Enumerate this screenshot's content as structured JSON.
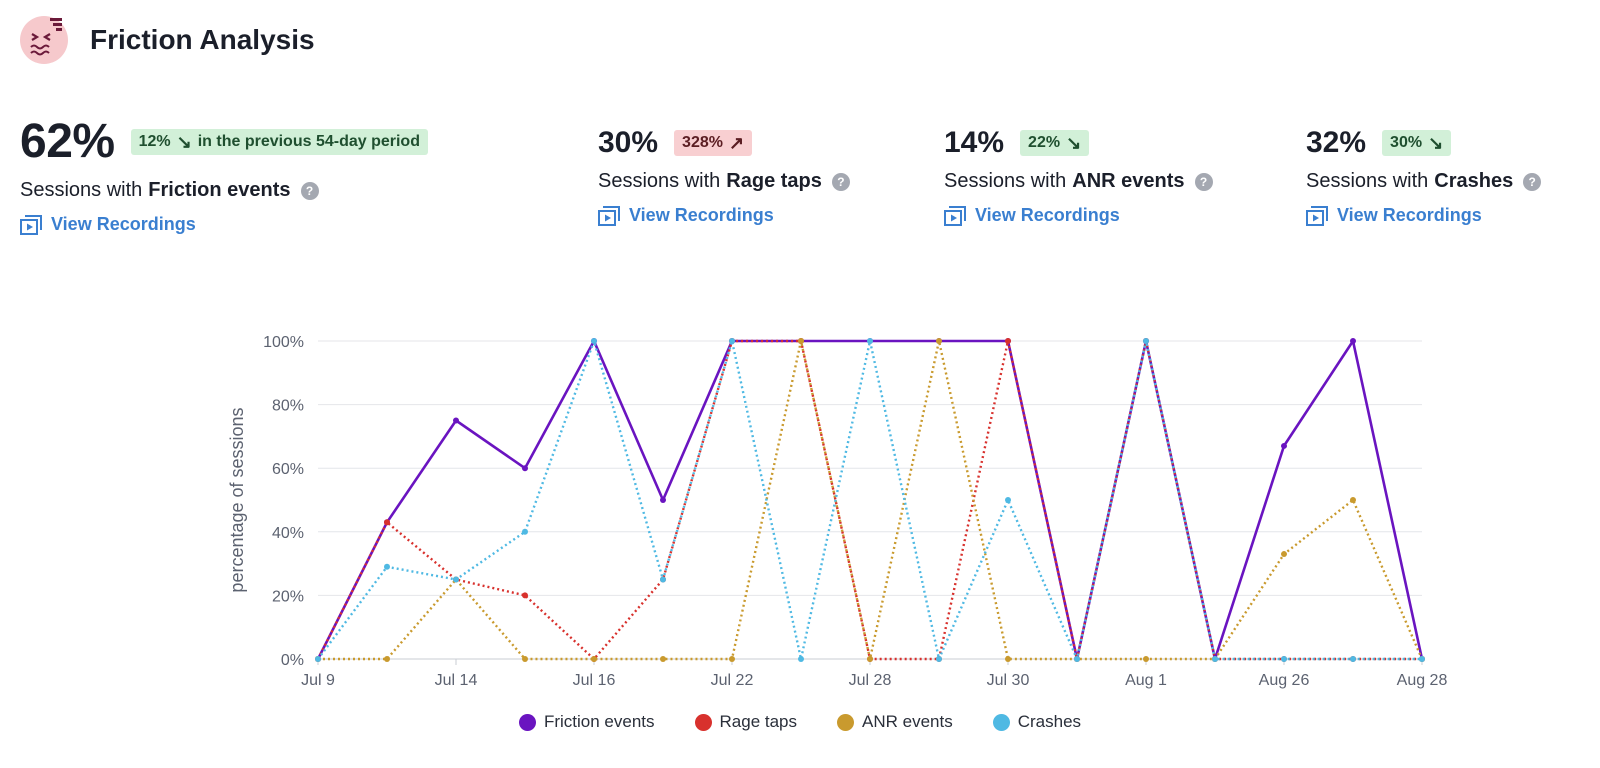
{
  "header": {
    "title": "Friction Analysis"
  },
  "metrics": [
    {
      "value": "62%",
      "change": "12%",
      "direction": "down",
      "trend": "good",
      "change_note": "in the previous 54-day period",
      "desc_prefix": "Sessions with",
      "desc_bold": "Friction events",
      "link": "View Recordings"
    },
    {
      "value": "30%",
      "change": "328%",
      "direction": "up",
      "trend": "bad",
      "change_note": "",
      "desc_prefix": "Sessions with",
      "desc_bold": "Rage taps",
      "link": "View Recordings"
    },
    {
      "value": "14%",
      "change": "22%",
      "direction": "down",
      "trend": "good",
      "change_note": "",
      "desc_prefix": "Sessions with",
      "desc_bold": "ANR events",
      "link": "View Recordings"
    },
    {
      "value": "32%",
      "change": "30%",
      "direction": "down",
      "trend": "good",
      "change_note": "",
      "desc_prefix": "Sessions with",
      "desc_bold": "Crashes",
      "link": "View Recordings"
    }
  ],
  "help_glyph": "?",
  "arrows": {
    "up": "↗",
    "down": "↘"
  },
  "colors": {
    "good_badge": "#d2f0d8",
    "bad_badge": "#f8cfd1",
    "link": "#3a7fd0",
    "logo_bg": "#f6c9cc"
  },
  "chart_data": {
    "type": "line",
    "ylabel": "percentage of sessions",
    "ylim": [
      0,
      100
    ],
    "y_ticks": [
      "0%",
      "20%",
      "40%",
      "60%",
      "80%",
      "100%"
    ],
    "x_tick_labels": [
      "Jul 9",
      "Jul 14",
      "Jul 16",
      "Jul 22",
      "Jul 28",
      "Jul 30",
      "Aug 1",
      "Aug 26",
      "Aug 28"
    ],
    "x_tick_positions": [
      0,
      2,
      4,
      6,
      8,
      10,
      12,
      14,
      16
    ],
    "point_count": 17,
    "grid": true,
    "legend_placement": "bottom",
    "series": [
      {
        "name": "Friction events",
        "color": "#6a14c0",
        "style": "solid",
        "values": [
          0,
          43,
          75,
          60,
          100,
          50,
          100,
          100,
          100,
          100,
          100,
          0,
          100,
          0,
          67,
          100,
          0
        ]
      },
      {
        "name": "Rage taps",
        "color": "#d8312d",
        "style": "dotted",
        "values": [
          0,
          43,
          25,
          20,
          0,
          25,
          100,
          100,
          0,
          0,
          100,
          0,
          100,
          0,
          0,
          0,
          0
        ]
      },
      {
        "name": "ANR events",
        "color": "#c99a2e",
        "style": "dotted",
        "values": [
          0,
          0,
          25,
          0,
          0,
          0,
          0,
          100,
          0,
          100,
          0,
          0,
          0,
          0,
          33,
          50,
          0
        ]
      },
      {
        "name": "Crashes",
        "color": "#4fb9e3",
        "style": "dotted",
        "values": [
          0,
          29,
          25,
          40,
          100,
          25,
          100,
          0,
          100,
          0,
          50,
          0,
          100,
          0,
          0,
          0,
          0
        ]
      }
    ]
  }
}
